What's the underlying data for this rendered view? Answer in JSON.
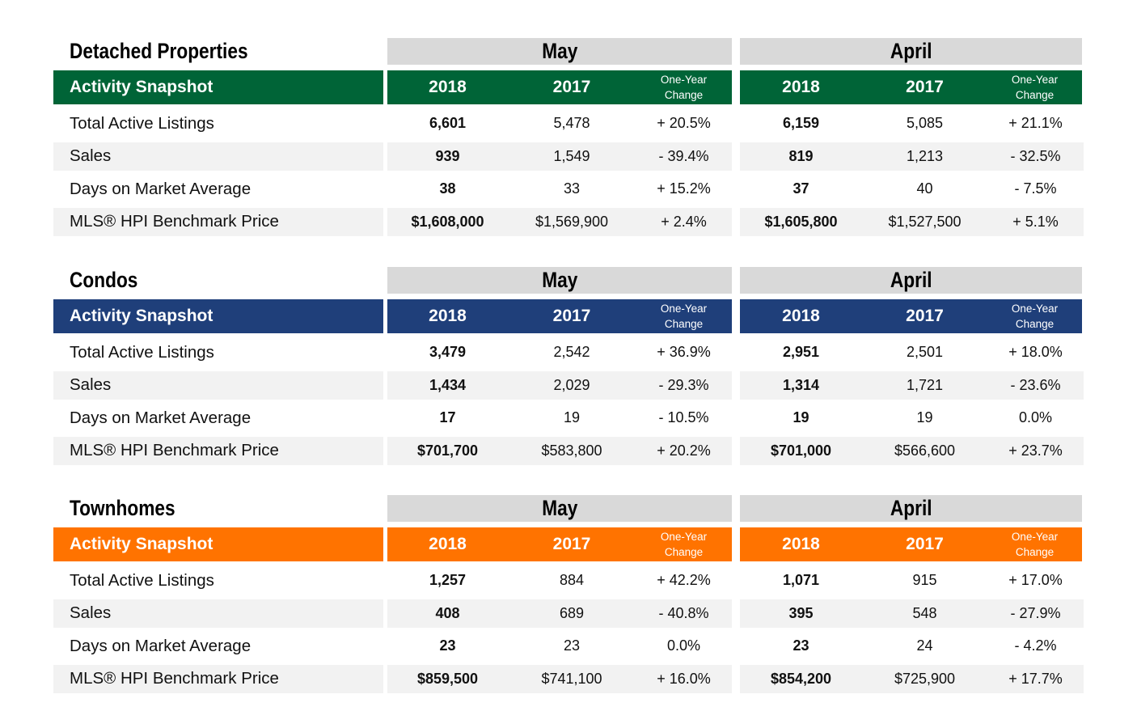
{
  "column_headers": {
    "year1": "2018",
    "year2": "2017",
    "change_line1": "One-Year",
    "change_line2": "Change"
  },
  "months": [
    "May",
    "April"
  ],
  "row_labels": [
    "Total Active Listings",
    "Sales",
    "Days on Market Average",
    "MLS® HPI Benchmark Price"
  ],
  "sections": [
    {
      "title": "Detached Properties",
      "snapshot_label": "Activity Snapshot",
      "color": "#006437",
      "rows": [
        {
          "may": [
            "6,601",
            "5,478",
            "+ 20.5%"
          ],
          "april": [
            "6,159",
            "5,085",
            "+ 21.1%"
          ]
        },
        {
          "may": [
            "939",
            "1,549",
            "- 39.4%"
          ],
          "april": [
            "819",
            "1,213",
            "- 32.5%"
          ]
        },
        {
          "may": [
            "38",
            "33",
            "+ 15.2%"
          ],
          "april": [
            "37",
            "40",
            "- 7.5%"
          ]
        },
        {
          "may": [
            "$1,608,000",
            "$1,569,900",
            "+ 2.4%"
          ],
          "april": [
            "$1,605,800",
            "$1,527,500",
            "+ 5.1%"
          ]
        }
      ]
    },
    {
      "title": "Condos",
      "snapshot_label": "Activity Snapshot",
      "color": "#1f3f7a",
      "rows": [
        {
          "may": [
            "3,479",
            "2,542",
            "+ 36.9%"
          ],
          "april": [
            "2,951",
            "2,501",
            "+ 18.0%"
          ]
        },
        {
          "may": [
            "1,434",
            "2,029",
            "- 29.3%"
          ],
          "april": [
            "1,314",
            "1,721",
            "- 23.6%"
          ]
        },
        {
          "may": [
            "17",
            "19",
            "- 10.5%"
          ],
          "april": [
            "19",
            "19",
            "0.0%"
          ]
        },
        {
          "may": [
            "$701,700",
            "$583,800",
            "+ 20.2%"
          ],
          "april": [
            "$701,000",
            "$566,600",
            "+ 23.7%"
          ]
        }
      ]
    },
    {
      "title": "Townhomes",
      "snapshot_label": "Activity Snapshot",
      "color": "#ff7300",
      "rows": [
        {
          "may": [
            "1,257",
            "884",
            "+ 42.2%"
          ],
          "april": [
            "1,071",
            "915",
            "+ 17.0%"
          ]
        },
        {
          "may": [
            "408",
            "689",
            "- 40.8%"
          ],
          "april": [
            "395",
            "548",
            "- 27.9%"
          ]
        },
        {
          "may": [
            "23",
            "23",
            "0.0%"
          ],
          "april": [
            "23",
            "24",
            "- 4.2%"
          ]
        },
        {
          "may": [
            "$859,500",
            "$741,100",
            "+ 16.0%"
          ],
          "april": [
            "$854,200",
            "$725,900",
            "+ 17.7%"
          ]
        }
      ]
    }
  ]
}
